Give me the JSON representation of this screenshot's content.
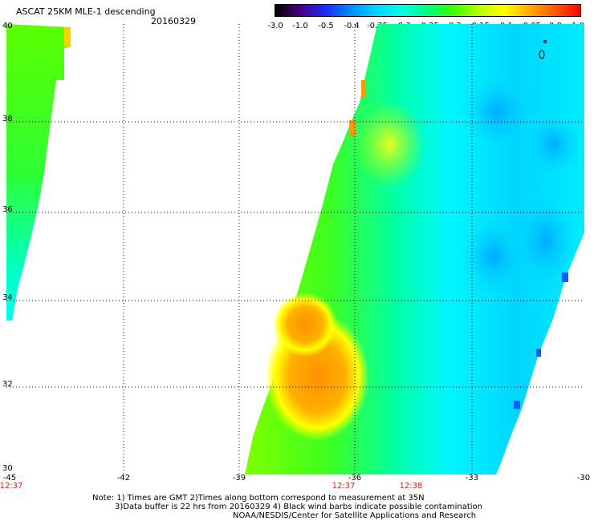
{
  "header": {
    "title": "ASCAT 25KM MLE-1 descending",
    "date": "20160329"
  },
  "colorbar": {
    "labels": [
      "-3.0",
      "-1.0",
      "-0.5",
      "-0.4",
      "-0.35",
      "-0.3",
      "-0.25",
      "-0.2",
      "-0.15",
      "-0.1",
      "-0.05",
      "0.0",
      "1.0"
    ],
    "colors": [
      "#000000",
      "#4b0082",
      "#1a2cff",
      "#0090ff",
      "#00d8ff",
      "#00ffe4",
      "#00ff7f",
      "#3cff00",
      "#b8ff00",
      "#ffff00",
      "#ffaa00",
      "#ff5a00",
      "#ff0000"
    ]
  },
  "map": {
    "lat_labels": [
      "40",
      "38",
      "36",
      "34",
      "32",
      "30"
    ],
    "lon_labels": [
      "-45",
      "-42",
      "-39",
      "-36",
      "-33",
      "-30"
    ],
    "time_labels": [
      "12:37",
      "12:37",
      "12:38"
    ],
    "time_color": "#d42a1a"
  },
  "notes": {
    "line1": "Note: 1) Times are GMT 2)Times along bottom correspond to measurement at 35N",
    "line2": "3)Data buffer is 22 hrs from 20160329 4) Black wind barbs indicate possible contamination",
    "line3": "NOAA/NESDIS/Center for Satellite Applications and Research"
  }
}
